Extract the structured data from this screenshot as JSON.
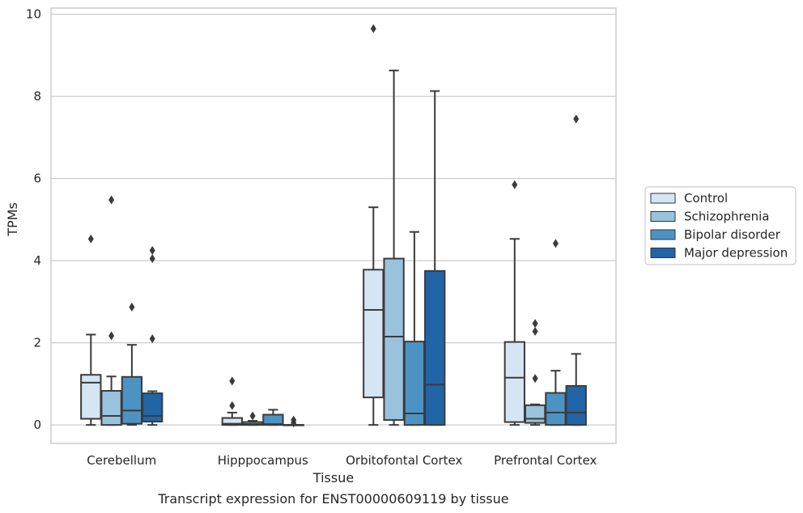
{
  "chart_data": {
    "type": "box",
    "xlabel": "Tissue",
    "ylabel": "TPMs",
    "caption": "Transcript expression for ENST00000609119 by tissue",
    "ylim": [
      -0.45,
      10.15
    ],
    "yticks": [
      0,
      2,
      4,
      6,
      8,
      10
    ],
    "grid": "horizontal",
    "legend_position": "right",
    "categories": [
      "Cerebellum",
      "Hipppocampus",
      "Orbitofontal Cortex",
      "Prefrontal Cortex"
    ],
    "series": [
      {
        "name": "Control",
        "color": "#d6e5f3",
        "boxes": [
          {
            "whisker_low": 0.0,
            "q1": 0.15,
            "median": 1.03,
            "q3": 1.22,
            "whisker_high": 2.2,
            "outliers": [
              4.53
            ]
          },
          {
            "whisker_low": 0.0,
            "q1": 0.0,
            "median": 0.03,
            "q3": 0.17,
            "whisker_high": 0.3,
            "outliers": [
              0.47,
              1.07
            ]
          },
          {
            "whisker_low": 0.0,
            "q1": 0.67,
            "median": 2.8,
            "q3": 3.78,
            "whisker_high": 5.3,
            "outliers": [
              9.65
            ]
          },
          {
            "whisker_low": 0.0,
            "q1": 0.07,
            "median": 1.15,
            "q3": 2.02,
            "whisker_high": 4.53,
            "outliers": [
              5.85
            ]
          }
        ]
      },
      {
        "name": "Schizophrenia",
        "color": "#99c3dd",
        "boxes": [
          {
            "whisker_low": 0.0,
            "q1": 0.0,
            "median": 0.22,
            "q3": 0.83,
            "whisker_high": 1.18,
            "outliers": [
              2.17,
              5.48
            ]
          },
          {
            "whisker_low": 0.0,
            "q1": 0.0,
            "median": 0.02,
            "q3": 0.07,
            "whisker_high": 0.1,
            "outliers": [
              0.22
            ]
          },
          {
            "whisker_low": 0.0,
            "q1": 0.12,
            "median": 2.15,
            "q3": 4.05,
            "whisker_high": 8.63,
            "outliers": []
          },
          {
            "whisker_low": 0.0,
            "q1": 0.05,
            "median": 0.15,
            "q3": 0.48,
            "whisker_high": 0.5,
            "outliers": [
              1.13,
              2.28,
              2.47
            ]
          }
        ]
      },
      {
        "name": "Bipolar disorder",
        "color": "#4c93c3",
        "boxes": [
          {
            "whisker_low": 0.0,
            "q1": 0.03,
            "median": 0.35,
            "q3": 1.17,
            "whisker_high": 1.95,
            "outliers": [
              2.87
            ]
          },
          {
            "whisker_low": 0.0,
            "q1": 0.0,
            "median": 0.02,
            "q3": 0.25,
            "whisker_high": 0.37,
            "outliers": []
          },
          {
            "whisker_low": 0.0,
            "q1": 0.0,
            "median": 0.28,
            "q3": 2.03,
            "whisker_high": 4.7,
            "outliers": []
          },
          {
            "whisker_low": 0.0,
            "q1": 0.0,
            "median": 0.3,
            "q3": 0.78,
            "whisker_high": 1.32,
            "outliers": [
              4.42
            ]
          }
        ]
      },
      {
        "name": "Major depression",
        "color": "#2165a7",
        "boxes": [
          {
            "whisker_low": 0.0,
            "q1": 0.08,
            "median": 0.22,
            "q3": 0.77,
            "whisker_high": 0.82,
            "outliers": [
              2.1,
              4.05,
              4.25
            ]
          },
          {
            "whisker_low": 0.0,
            "q1": 0.0,
            "median": 0.0,
            "q3": 0.0,
            "whisker_high": 0.0,
            "outliers": [
              0.05,
              0.12
            ]
          },
          {
            "whisker_low": 0.0,
            "q1": 0.0,
            "median": 0.98,
            "q3": 3.75,
            "whisker_high": 8.13,
            "outliers": []
          },
          {
            "whisker_low": 0.0,
            "q1": 0.0,
            "median": 0.3,
            "q3": 0.95,
            "whisker_high": 1.73,
            "outliers": [
              7.45
            ]
          }
        ]
      }
    ]
  }
}
